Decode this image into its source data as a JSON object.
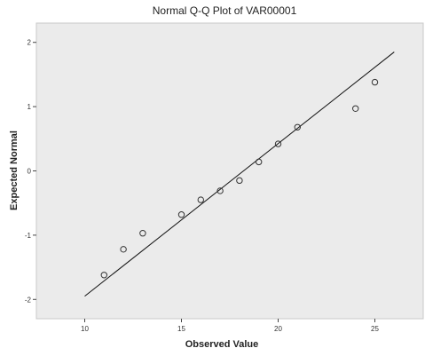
{
  "chart_data": {
    "type": "scatter",
    "title": "Normal Q-Q Plot of VAR00001",
    "xlabel": "Observed Value",
    "ylabel": "Expected Normal",
    "xlim": [
      7.5,
      27.5
    ],
    "ylim": [
      -2.3,
      2.3
    ],
    "x_ticks": [
      10,
      15,
      20,
      25
    ],
    "y_ticks": [
      -2,
      -1,
      0,
      1,
      2
    ],
    "grid": false,
    "background_color": "#ebebeb",
    "point_color": "#333333",
    "line_color": "#111111",
    "points": [
      {
        "x": 11,
        "y": -1.62
      },
      {
        "x": 12,
        "y": -1.22
      },
      {
        "x": 13,
        "y": -0.97
      },
      {
        "x": 15,
        "y": -0.68
      },
      {
        "x": 16,
        "y": -0.45
      },
      {
        "x": 17,
        "y": -0.31
      },
      {
        "x": 18,
        "y": -0.15
      },
      {
        "x": 19,
        "y": 0.14
      },
      {
        "x": 20,
        "y": 0.42
      },
      {
        "x": 21,
        "y": 0.68
      },
      {
        "x": 24,
        "y": 0.97
      },
      {
        "x": 25,
        "y": 1.38
      }
    ],
    "reference_line": {
      "x": [
        10,
        26
      ],
      "y": [
        -1.95,
        1.85
      ]
    }
  }
}
